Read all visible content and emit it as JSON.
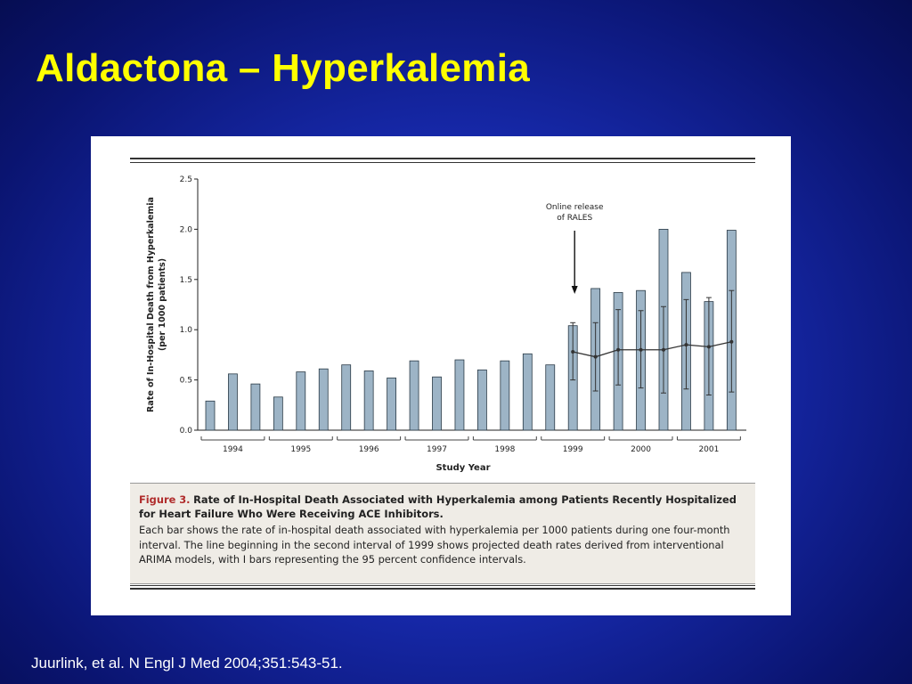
{
  "slide": {
    "title": "Aldactona – Hyperkalemia",
    "citation": "Juurlink, et al. N Engl J Med 2004;351:543-51."
  },
  "figure": {
    "caption_label": "Figure 3.",
    "caption_title": "Rate of In-Hospital Death Associated with Hyperkalemia among Patients Recently Hospitalized for Heart Failure Who Were Receiving ACE Inhibitors.",
    "caption_body": "Each bar shows the rate of in-hospital death associated with hyperkalemia per 1000 patients during one four-month interval. The line beginning in the second interval of 1999 shows projected death rates derived from interventional ARIMA models, with I bars representing the 95 percent confidence intervals."
  },
  "chart_data": {
    "type": "bar",
    "title": "",
    "xlabel": "Study Year",
    "ylabel": "Rate of In-Hospital Death from Hyperkalemia",
    "ylabel_sub": "(per 1000 patients)",
    "ylim": [
      0,
      2.5
    ],
    "yticks": [
      "0.0",
      "0.5",
      "1.0",
      "1.5",
      "2.0",
      "2.5"
    ],
    "year_groups": [
      "1994",
      "1995",
      "1996",
      "1997",
      "1998",
      "1999",
      "2000",
      "2001"
    ],
    "intervals_per_year": 3,
    "values": [
      0.29,
      0.56,
      0.46,
      0.33,
      0.58,
      0.61,
      0.65,
      0.59,
      0.52,
      0.69,
      0.53,
      0.7,
      0.6,
      0.69,
      0.76,
      0.65,
      1.04,
      1.41,
      1.37,
      1.39,
      2.0,
      1.57,
      1.28,
      1.99
    ],
    "projection": {
      "start_index": 16,
      "mean": [
        0.78,
        0.73,
        0.8,
        0.8,
        0.8,
        0.85,
        0.83,
        0.88
      ],
      "lower": [
        0.5,
        0.39,
        0.45,
        0.42,
        0.37,
        0.41,
        0.35,
        0.38
      ],
      "upper": [
        1.07,
        1.07,
        1.2,
        1.19,
        1.23,
        1.3,
        1.32,
        1.39
      ]
    },
    "annotation": {
      "lines": [
        "Online release",
        "of RALES"
      ],
      "bar_index": 16
    },
    "colors": {
      "bar": "#9db4c6",
      "bar_edge": "#2a3a46",
      "line": "#333333"
    },
    "grid": false,
    "legend": "none"
  }
}
